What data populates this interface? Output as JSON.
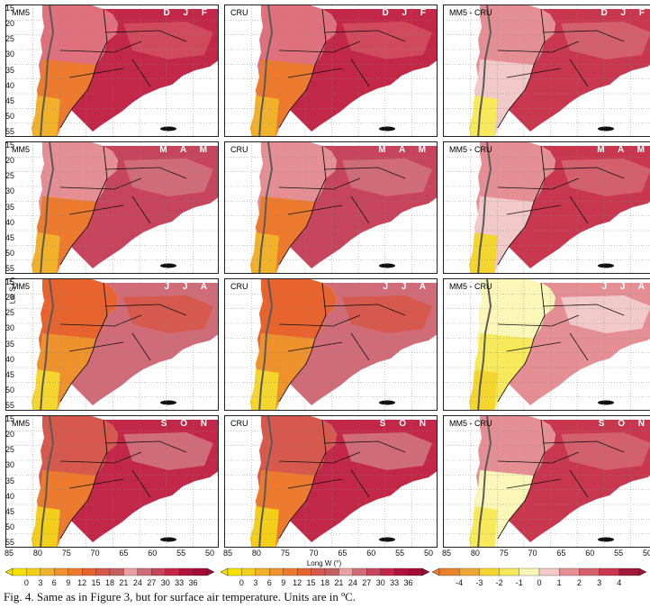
{
  "columns": [
    "MM5",
    "CRU",
    "MM5 - CRU"
  ],
  "seasons": [
    "D J F",
    "M A M",
    "J J A",
    "S O N"
  ],
  "y_ticks": [
    "15",
    "20",
    "25",
    "30",
    "35",
    "40",
    "45",
    "50",
    "55"
  ],
  "x_ticks": [
    "85",
    "80",
    "75",
    "70",
    "65",
    "60",
    "55",
    "50"
  ],
  "y_axis_label": "Lat S (°)",
  "x_axis_label": "Long W (°)",
  "colorbar_abs": {
    "labels": [
      "0",
      "3",
      "6",
      "9",
      "12",
      "15",
      "18",
      "21",
      "24",
      "27",
      "30",
      "33",
      "36"
    ],
    "colors": [
      "#f5e000",
      "#f3cf1a",
      "#f2b12a",
      "#f0922b",
      "#ee7a2d",
      "#e8632e",
      "#d7584c",
      "#c55f5f",
      "#e8a0a0",
      "#d06b78",
      "#c7455c",
      "#c22748",
      "#b3123d",
      "#a50a36"
    ]
  },
  "colorbar_diff": {
    "labels": [
      "-4",
      "-3",
      "-2",
      "-1",
      "0",
      "1",
      "2",
      "3",
      "4"
    ],
    "colors": [
      "#e9802b",
      "#f1a534",
      "#f5d62e",
      "#f6e95a",
      "#fbf7b8",
      "#f2c9c9",
      "#e58f95",
      "#d4606c",
      "#c8374e",
      "#a31838"
    ]
  },
  "caption": "Fig. 4. Same as in Figure 3, but for surface air temperature. Units are in ºC."
}
